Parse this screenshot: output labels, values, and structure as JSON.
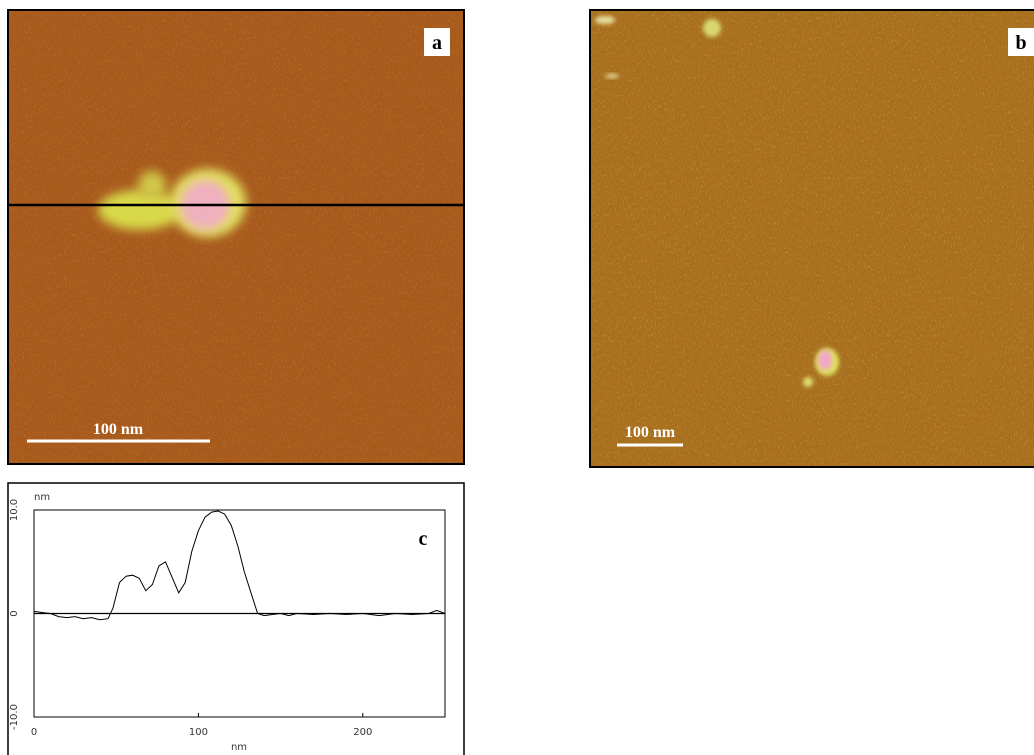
{
  "panels": {
    "a": {
      "label": "a",
      "scale_bar": "100 nm"
    },
    "b": {
      "label": "b",
      "scale_bar": "100 nm"
    }
  },
  "chart_data": {
    "type": "line",
    "label": "c",
    "y_unit": "nm",
    "x_label": "nm",
    "color": "#000000",
    "x": [
      0,
      5,
      10,
      15,
      20,
      25,
      30,
      35,
      40,
      45,
      48,
      52,
      56,
      60,
      64,
      68,
      72,
      76,
      80,
      84,
      88,
      92,
      96,
      100,
      104,
      108,
      112,
      116,
      120,
      124,
      128,
      132,
      136,
      140,
      145,
      150,
      155,
      160,
      170,
      180,
      190,
      200,
      210,
      220,
      230,
      240,
      245,
      250
    ],
    "values": [
      0.2,
      0.1,
      0,
      -0.3,
      -0.4,
      -0.3,
      -0.5,
      -0.4,
      -0.6,
      -0.5,
      0.5,
      3,
      3.6,
      3.7,
      3.4,
      2.2,
      2.8,
      4.6,
      5,
      3.5,
      2,
      3,
      6,
      8,
      9.3,
      9.8,
      9.9,
      9.6,
      8.5,
      6.5,
      4,
      2,
      0,
      -0.2,
      -0.1,
      0,
      -0.2,
      0,
      -0.1,
      0,
      -0.1,
      0,
      -0.2,
      0,
      -0.1,
      0,
      0.3,
      0
    ],
    "xlim": [
      0,
      250
    ],
    "ylim": [
      -10,
      10
    ],
    "xticks": [
      0,
      100,
      200
    ],
    "yticks": [
      {
        "value": -10,
        "label": "-10.0"
      },
      0,
      {
        "value": 10,
        "label": "10.0"
      }
    ]
  }
}
